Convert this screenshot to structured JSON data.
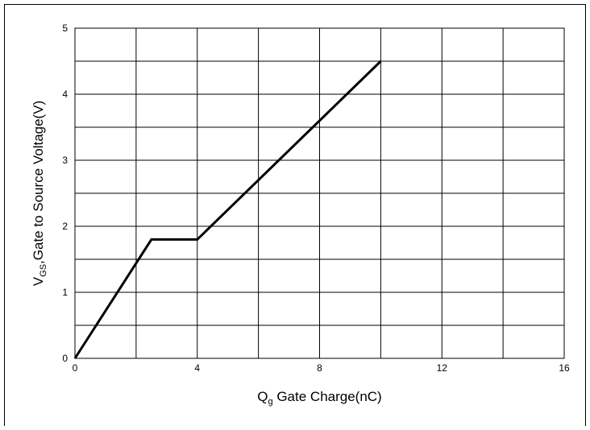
{
  "chart_data": {
    "type": "line",
    "title": "",
    "xlabel": {
      "main": "Q",
      "sub": "g",
      "rest": " Gate Charge(nC)"
    },
    "ylabel": {
      "main": "V",
      "sub": "GS",
      "rest": ",Gate to Source Voltage(V)"
    },
    "xlim": [
      0,
      16
    ],
    "ylim": [
      0,
      5
    ],
    "x_ticks": [
      "0",
      "4",
      "8",
      "12",
      "16"
    ],
    "y_ticks": [
      "0",
      "1",
      "2",
      "3",
      "4",
      "5"
    ],
    "grid": true,
    "series": [
      {
        "color": "#000000",
        "points": [
          {
            "x": 0,
            "y": 0
          },
          {
            "x": 2.5,
            "y": 1.8
          },
          {
            "x": 4,
            "y": 1.8
          },
          {
            "x": 10,
            "y": 4.5
          }
        ]
      }
    ]
  }
}
